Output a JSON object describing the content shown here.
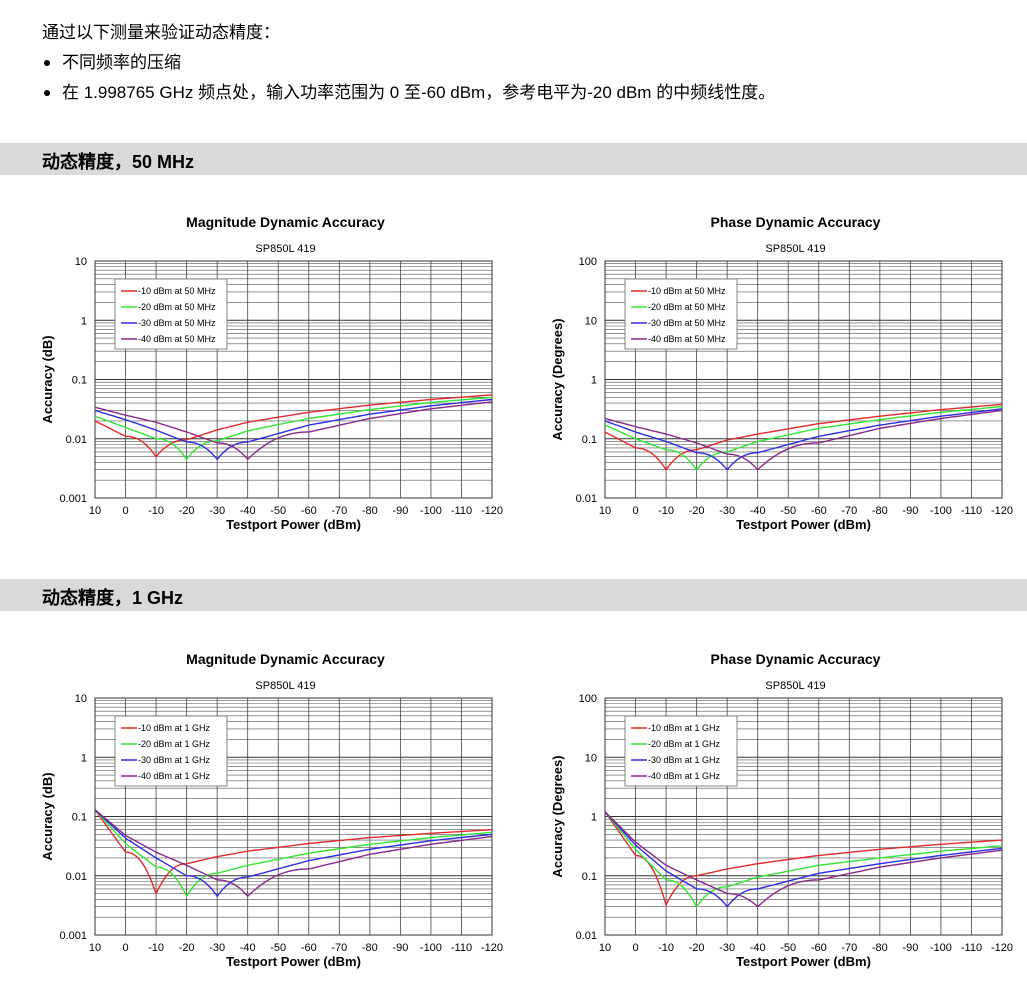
{
  "intro": {
    "lead": "通过以下测量来验证动态精度：",
    "bullets": [
      "不同频率的压缩",
      "在 1.998765 GHz 频点处，输入功率范围为 0 至-60 dBm，参考电平为-20 dBm 的中频线性度。"
    ]
  },
  "sections": [
    {
      "title": "动态精度，50 MHz"
    },
    {
      "title": "动态精度，1 GHz"
    }
  ],
  "colors": {
    "series": [
      "#e32b2b",
      "#33e633",
      "#2e2ee6",
      "#8a2a8a"
    ],
    "section_bar": "#d9d9d9"
  },
  "chart_data": [
    {
      "type": "line",
      "title": "Magnitude Dynamic Accuracy",
      "subtitle": "SP850L 419",
      "xlabel": "Testport Power (dBm)",
      "ylabel": "Accuracy (dB)",
      "x_ticks": [
        "10",
        "0",
        "-10",
        "-20",
        "-30",
        "-40",
        "-50",
        "-60",
        "-70",
        "-80",
        "-90",
        "-100",
        "-110",
        "-120"
      ],
      "y_ticks": [
        "10",
        "1",
        "0.1",
        "0.01",
        "0.001"
      ],
      "xlim": [
        10,
        -120
      ],
      "ylim": [
        0.001,
        10
      ],
      "y_scale": "log",
      "legend_position": "top-left",
      "series": [
        {
          "name": "-10 dBm at 50 MHz",
          "min_at": -10,
          "x": [
            10,
            0,
            -10,
            -20,
            -30,
            -40,
            -60,
            -80,
            -100,
            -120
          ],
          "y": [
            0.02,
            0.011,
            0.005,
            0.0096,
            0.0141,
            0.019,
            0.028,
            0.037,
            0.046,
            0.055
          ]
        },
        {
          "name": "-20 dBm at 50 MHz",
          "min_at": -20,
          "x": [
            10,
            0,
            -10,
            -20,
            -30,
            -40,
            -60,
            -80,
            -100,
            -120
          ],
          "y": [
            0.024,
            0.0155,
            0.01,
            0.0045,
            0.0092,
            0.0136,
            0.022,
            0.031,
            0.041,
            0.05
          ]
        },
        {
          "name": "-30 dBm at 50 MHz",
          "min_at": -30,
          "x": [
            10,
            0,
            -10,
            -20,
            -30,
            -40,
            -60,
            -80,
            -100,
            -120
          ],
          "y": [
            0.03,
            0.021,
            0.014,
            0.0088,
            0.0045,
            0.0088,
            0.017,
            0.026,
            0.036,
            0.046
          ]
        },
        {
          "name": "-40 dBm at 50 MHz",
          "min_at": -40,
          "x": [
            10,
            0,
            -10,
            -20,
            -30,
            -40,
            -60,
            -80,
            -100,
            -120
          ],
          "y": [
            0.034,
            0.025,
            0.019,
            0.013,
            0.0085,
            0.0045,
            0.013,
            0.022,
            0.032,
            0.042
          ]
        }
      ]
    },
    {
      "type": "line",
      "title": "Phase Dynamic Accuracy",
      "subtitle": "SP850L 419",
      "xlabel": "Testport Power (dBm)",
      "ylabel": "Accuracy (Degrees)",
      "x_ticks": [
        "10",
        "0",
        "-10",
        "-20",
        "-30",
        "-40",
        "-50",
        "-60",
        "-70",
        "-80",
        "-90",
        "-100",
        "-110",
        "-120"
      ],
      "y_ticks": [
        "100",
        "10",
        "1",
        "0.1",
        "0.01"
      ],
      "xlim": [
        10,
        -120
      ],
      "ylim": [
        0.01,
        100
      ],
      "y_scale": "log",
      "legend_position": "top-left",
      "series": [
        {
          "name": "-10 dBm at 50 MHz",
          "min_at": -10,
          "x": [
            10,
            0,
            -10,
            -20,
            -30,
            -40,
            -60,
            -80,
            -100,
            -120
          ],
          "y": [
            0.13,
            0.07,
            0.03,
            0.065,
            0.095,
            0.12,
            0.18,
            0.24,
            0.31,
            0.38
          ]
        },
        {
          "name": "-20 dBm at 50 MHz",
          "min_at": -20,
          "x": [
            10,
            0,
            -10,
            -20,
            -30,
            -40,
            -60,
            -80,
            -100,
            -120
          ],
          "y": [
            0.17,
            0.1,
            0.065,
            0.03,
            0.06,
            0.09,
            0.15,
            0.21,
            0.28,
            0.35
          ]
        },
        {
          "name": "-30 dBm at 50 MHz",
          "min_at": -30,
          "x": [
            10,
            0,
            -10,
            -20,
            -30,
            -40,
            -60,
            -80,
            -100,
            -120
          ],
          "y": [
            0.2,
            0.13,
            0.09,
            0.058,
            0.03,
            0.058,
            0.11,
            0.17,
            0.24,
            0.32
          ]
        },
        {
          "name": "-40 dBm at 50 MHz",
          "min_at": -40,
          "x": [
            10,
            0,
            -10,
            -20,
            -30,
            -40,
            -60,
            -80,
            -100,
            -120
          ],
          "y": [
            0.22,
            0.16,
            0.12,
            0.085,
            0.055,
            0.03,
            0.085,
            0.15,
            0.22,
            0.3
          ]
        }
      ]
    },
    {
      "type": "line",
      "title": "Magnitude Dynamic Accuracy",
      "subtitle": "SP850L 419",
      "xlabel": "Testport Power (dBm)",
      "ylabel": "Accuracy (dB)",
      "x_ticks": [
        "10",
        "0",
        "-10",
        "-20",
        "-30",
        "-40",
        "-50",
        "-60",
        "-70",
        "-80",
        "-90",
        "-100",
        "-110",
        "-120"
      ],
      "y_ticks": [
        "10",
        "1",
        "0.1",
        "0.01",
        "0.001"
      ],
      "xlim": [
        10,
        -120
      ],
      "ylim": [
        0.001,
        10
      ],
      "y_scale": "log",
      "legend_position": "top-left",
      "series": [
        {
          "name": "-10 dBm at 1 GHz",
          "min_at": -10,
          "x": [
            10,
            0,
            -10,
            -20,
            -30,
            -40,
            -60,
            -80,
            -100,
            -120
          ],
          "y": [
            0.13,
            0.025,
            0.005,
            0.016,
            0.021,
            0.026,
            0.035,
            0.044,
            0.052,
            0.06
          ]
        },
        {
          "name": "-20 dBm at 1 GHz",
          "min_at": -20,
          "x": [
            10,
            0,
            -10,
            -20,
            -30,
            -40,
            -60,
            -80,
            -100,
            -120
          ],
          "y": [
            0.13,
            0.035,
            0.014,
            0.0045,
            0.011,
            0.015,
            0.024,
            0.034,
            0.044,
            0.054
          ]
        },
        {
          "name": "-30 dBm at 1 GHz",
          "min_at": -30,
          "x": [
            10,
            0,
            -10,
            -20,
            -30,
            -40,
            -60,
            -80,
            -100,
            -120
          ],
          "y": [
            0.13,
            0.043,
            0.02,
            0.01,
            0.0045,
            0.0095,
            0.018,
            0.028,
            0.039,
            0.05
          ]
        },
        {
          "name": "-40 dBm at 1 GHz",
          "min_at": -40,
          "x": [
            10,
            0,
            -10,
            -20,
            -30,
            -40,
            -60,
            -80,
            -100,
            -120
          ],
          "y": [
            0.13,
            0.048,
            0.025,
            0.015,
            0.0085,
            0.0045,
            0.013,
            0.023,
            0.034,
            0.046
          ]
        }
      ]
    },
    {
      "type": "line",
      "title": "Phase Dynamic Accuracy",
      "subtitle": "SP850L 419",
      "xlabel": "Testport Power (dBm)",
      "ylabel": "Accuracy (Degrees)",
      "x_ticks": [
        "10",
        "0",
        "-10",
        "-20",
        "-30",
        "-40",
        "-50",
        "-60",
        "-70",
        "-80",
        "-90",
        "-100",
        "-110",
        "-120"
      ],
      "y_ticks": [
        "100",
        "10",
        "1",
        "0.1",
        "0.01"
      ],
      "xlim": [
        10,
        -120
      ],
      "ylim": [
        0.01,
        100
      ],
      "y_scale": "log",
      "legend_position": "top-left",
      "series": [
        {
          "name": "-10 dBm at 1 GHz",
          "min_at": -10,
          "x": [
            10,
            0,
            -10,
            -20,
            -30,
            -40,
            -60,
            -80,
            -100,
            -120
          ],
          "y": [
            1.2,
            0.22,
            0.032,
            0.1,
            0.13,
            0.16,
            0.22,
            0.28,
            0.34,
            0.4
          ]
        },
        {
          "name": "-20 dBm at 1 GHz",
          "min_at": -20,
          "x": [
            10,
            0,
            -10,
            -20,
            -30,
            -40,
            -60,
            -80,
            -100,
            -120
          ],
          "y": [
            1.2,
            0.28,
            0.085,
            0.03,
            0.065,
            0.095,
            0.15,
            0.2,
            0.26,
            0.32
          ]
        },
        {
          "name": "-30 dBm at 1 GHz",
          "min_at": -30,
          "x": [
            10,
            0,
            -10,
            -20,
            -30,
            -40,
            -60,
            -80,
            -100,
            -120
          ],
          "y": [
            1.2,
            0.33,
            0.12,
            0.06,
            0.03,
            0.06,
            0.11,
            0.16,
            0.22,
            0.29
          ]
        },
        {
          "name": "-40 dBm at 1 GHz",
          "min_at": -40,
          "x": [
            10,
            0,
            -10,
            -20,
            -30,
            -40,
            -60,
            -80,
            -100,
            -120
          ],
          "y": [
            1.2,
            0.37,
            0.15,
            0.085,
            0.05,
            0.03,
            0.085,
            0.14,
            0.2,
            0.27
          ]
        }
      ]
    }
  ]
}
